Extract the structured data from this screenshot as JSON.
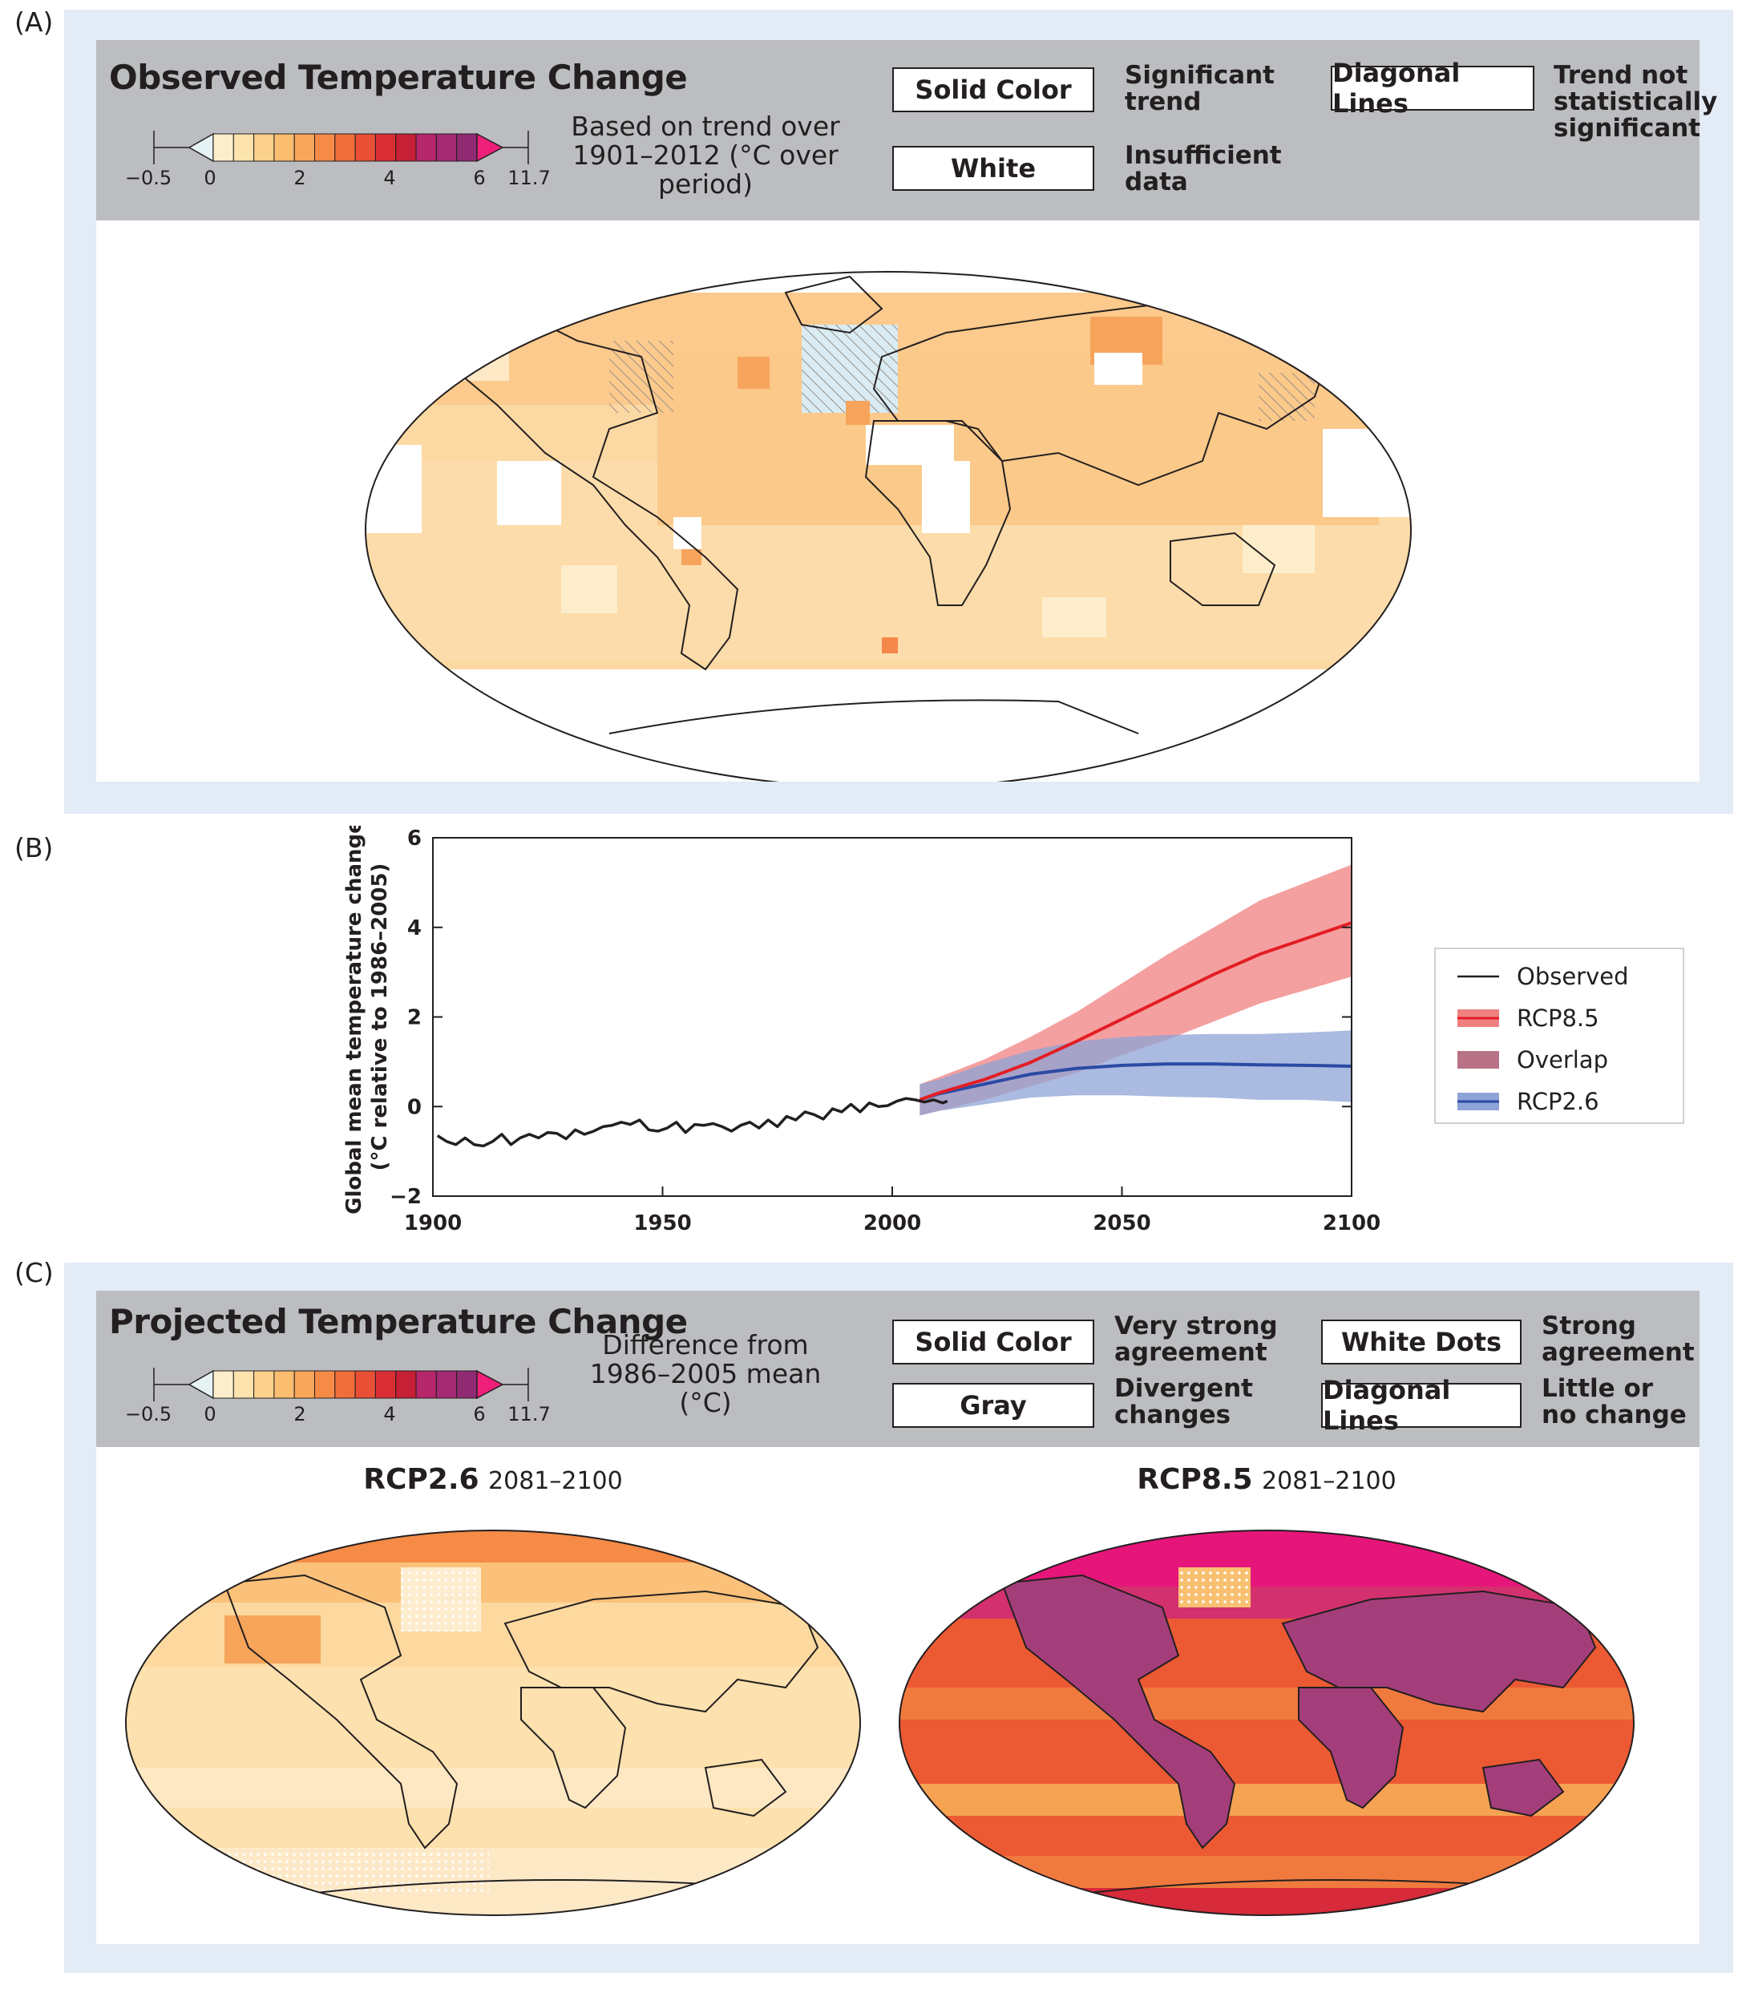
{
  "panel_labels": [
    "(A)",
    "(B)",
    "(C)"
  ],
  "colors": {
    "frame": "#e3ebf6",
    "header": "#bcbdc0",
    "scale": [
      "#e6f3f5",
      "#fdeecb",
      "#fde3ad",
      "#fcd18c",
      "#fbbd6f",
      "#f9a55a",
      "#f58b46",
      "#f06e3c",
      "#e84f35",
      "#db2e34",
      "#c52035",
      "#b6266a",
      "#a42a74",
      "#8f2a73",
      "#ed1f79"
    ],
    "observed": "#231f20",
    "rcp85": "#e31e24",
    "rcp85_band": "#f08080",
    "overlap": "#b97386",
    "rcp26": "#2b4aa4",
    "rcp26_band": "#8ea3d6"
  },
  "panelA": {
    "title": "Observed Temperature Change",
    "description": [
      "Based on trend over",
      "1901–2012 (°C over period)"
    ],
    "colorbar_ticks": [
      "−0.5",
      "0",
      "2",
      "4",
      "6",
      "11.7"
    ],
    "keys": [
      {
        "box": "Solid Color",
        "text": [
          "Significant",
          "trend"
        ]
      },
      {
        "box": "White",
        "text": [
          "Insufficient",
          "data"
        ]
      },
      {
        "box": "Diagonal Lines",
        "text": [
          "Trend not",
          "statistically",
          "significant"
        ]
      }
    ]
  },
  "panelC": {
    "title": "Projected Temperature Change",
    "description": [
      "Difference from",
      "1986–2005 mean (°C)"
    ],
    "colorbar_ticks": [
      "−0.5",
      "0",
      "2",
      "4",
      "6",
      "11.7"
    ],
    "keys": [
      {
        "box": "Solid Color",
        "text": [
          "Very strong",
          "agreement"
        ]
      },
      {
        "box": "Gray",
        "text": [
          "Divergent",
          "changes"
        ]
      },
      {
        "box": "White Dots",
        "text": [
          "Strong",
          "agreement"
        ]
      },
      {
        "box": "Diagonal Lines",
        "text": [
          "Little or",
          "no change"
        ]
      }
    ],
    "maps": [
      {
        "scenario": "RCP2.6",
        "period": "2081–2100"
      },
      {
        "scenario": "RCP8.5",
        "period": "2081–2100"
      }
    ]
  },
  "chart_data": {
    "type": "line",
    "ylabel": [
      "Global mean temperature change",
      "(°C relative to 1986–2005)"
    ],
    "xlim": [
      1900,
      2100
    ],
    "ylim": [
      -2,
      6
    ],
    "xticks": [
      1900,
      1950,
      2000,
      2050,
      2100
    ],
    "yticks": [
      -2,
      0,
      2,
      4,
      6
    ],
    "ytick_labels": [
      "−2",
      "0",
      "2",
      "4",
      "6"
    ],
    "legend_position": "right",
    "legend": [
      "Observed",
      "RCP8.5",
      "Overlap",
      "RCP2.6"
    ],
    "series": [
      {
        "name": "Observed",
        "x": [
          1901,
          1903,
          1905,
          1907,
          1909,
          1911,
          1913,
          1915,
          1917,
          1919,
          1921,
          1923,
          1925,
          1927,
          1929,
          1931,
          1933,
          1935,
          1937,
          1939,
          1941,
          1943,
          1945,
          1947,
          1949,
          1951,
          1953,
          1955,
          1957,
          1959,
          1961,
          1963,
          1965,
          1967,
          1969,
          1971,
          1973,
          1975,
          1977,
          1979,
          1981,
          1983,
          1985,
          1987,
          1989,
          1991,
          1993,
          1995,
          1997,
          1999,
          2001,
          2003,
          2005,
          2007,
          2009,
          2011,
          2012
        ],
        "y": [
          -0.65,
          -0.78,
          -0.85,
          -0.7,
          -0.85,
          -0.88,
          -0.78,
          -0.62,
          -0.85,
          -0.7,
          -0.62,
          -0.7,
          -0.58,
          -0.6,
          -0.72,
          -0.52,
          -0.62,
          -0.55,
          -0.45,
          -0.42,
          -0.35,
          -0.4,
          -0.3,
          -0.52,
          -0.55,
          -0.48,
          -0.35,
          -0.58,
          -0.4,
          -0.42,
          -0.38,
          -0.45,
          -0.55,
          -0.42,
          -0.35,
          -0.48,
          -0.3,
          -0.45,
          -0.22,
          -0.3,
          -0.12,
          -0.18,
          -0.28,
          -0.05,
          -0.12,
          0.05,
          -0.12,
          0.08,
          0.0,
          0.02,
          0.12,
          0.18,
          0.15,
          0.1,
          0.15,
          0.08,
          0.12
        ]
      },
      {
        "name": "RCP8.5",
        "x": [
          2006,
          2010,
          2020,
          2030,
          2040,
          2050,
          2060,
          2070,
          2080,
          2090,
          2100
        ],
        "y": [
          0.15,
          0.3,
          0.6,
          0.98,
          1.45,
          1.95,
          2.45,
          2.95,
          3.4,
          3.75,
          4.1
        ],
        "lower": [
          -0.2,
          -0.1,
          0.15,
          0.45,
          0.75,
          1.15,
          1.5,
          1.9,
          2.3,
          2.6,
          2.9
        ],
        "upper": [
          0.5,
          0.65,
          1.05,
          1.55,
          2.1,
          2.75,
          3.4,
          4.0,
          4.6,
          5.0,
          5.4
        ]
      },
      {
        "name": "RCP2.6",
        "x": [
          2006,
          2010,
          2020,
          2030,
          2040,
          2050,
          2060,
          2070,
          2080,
          2090,
          2100
        ],
        "y": [
          0.15,
          0.28,
          0.5,
          0.72,
          0.85,
          0.92,
          0.95,
          0.95,
          0.93,
          0.92,
          0.9
        ],
        "lower": [
          -0.2,
          -0.1,
          0.05,
          0.2,
          0.25,
          0.25,
          0.22,
          0.2,
          0.15,
          0.15,
          0.1
        ],
        "upper": [
          0.5,
          0.6,
          0.95,
          1.25,
          1.45,
          1.55,
          1.6,
          1.62,
          1.62,
          1.65,
          1.7
        ]
      }
    ]
  }
}
